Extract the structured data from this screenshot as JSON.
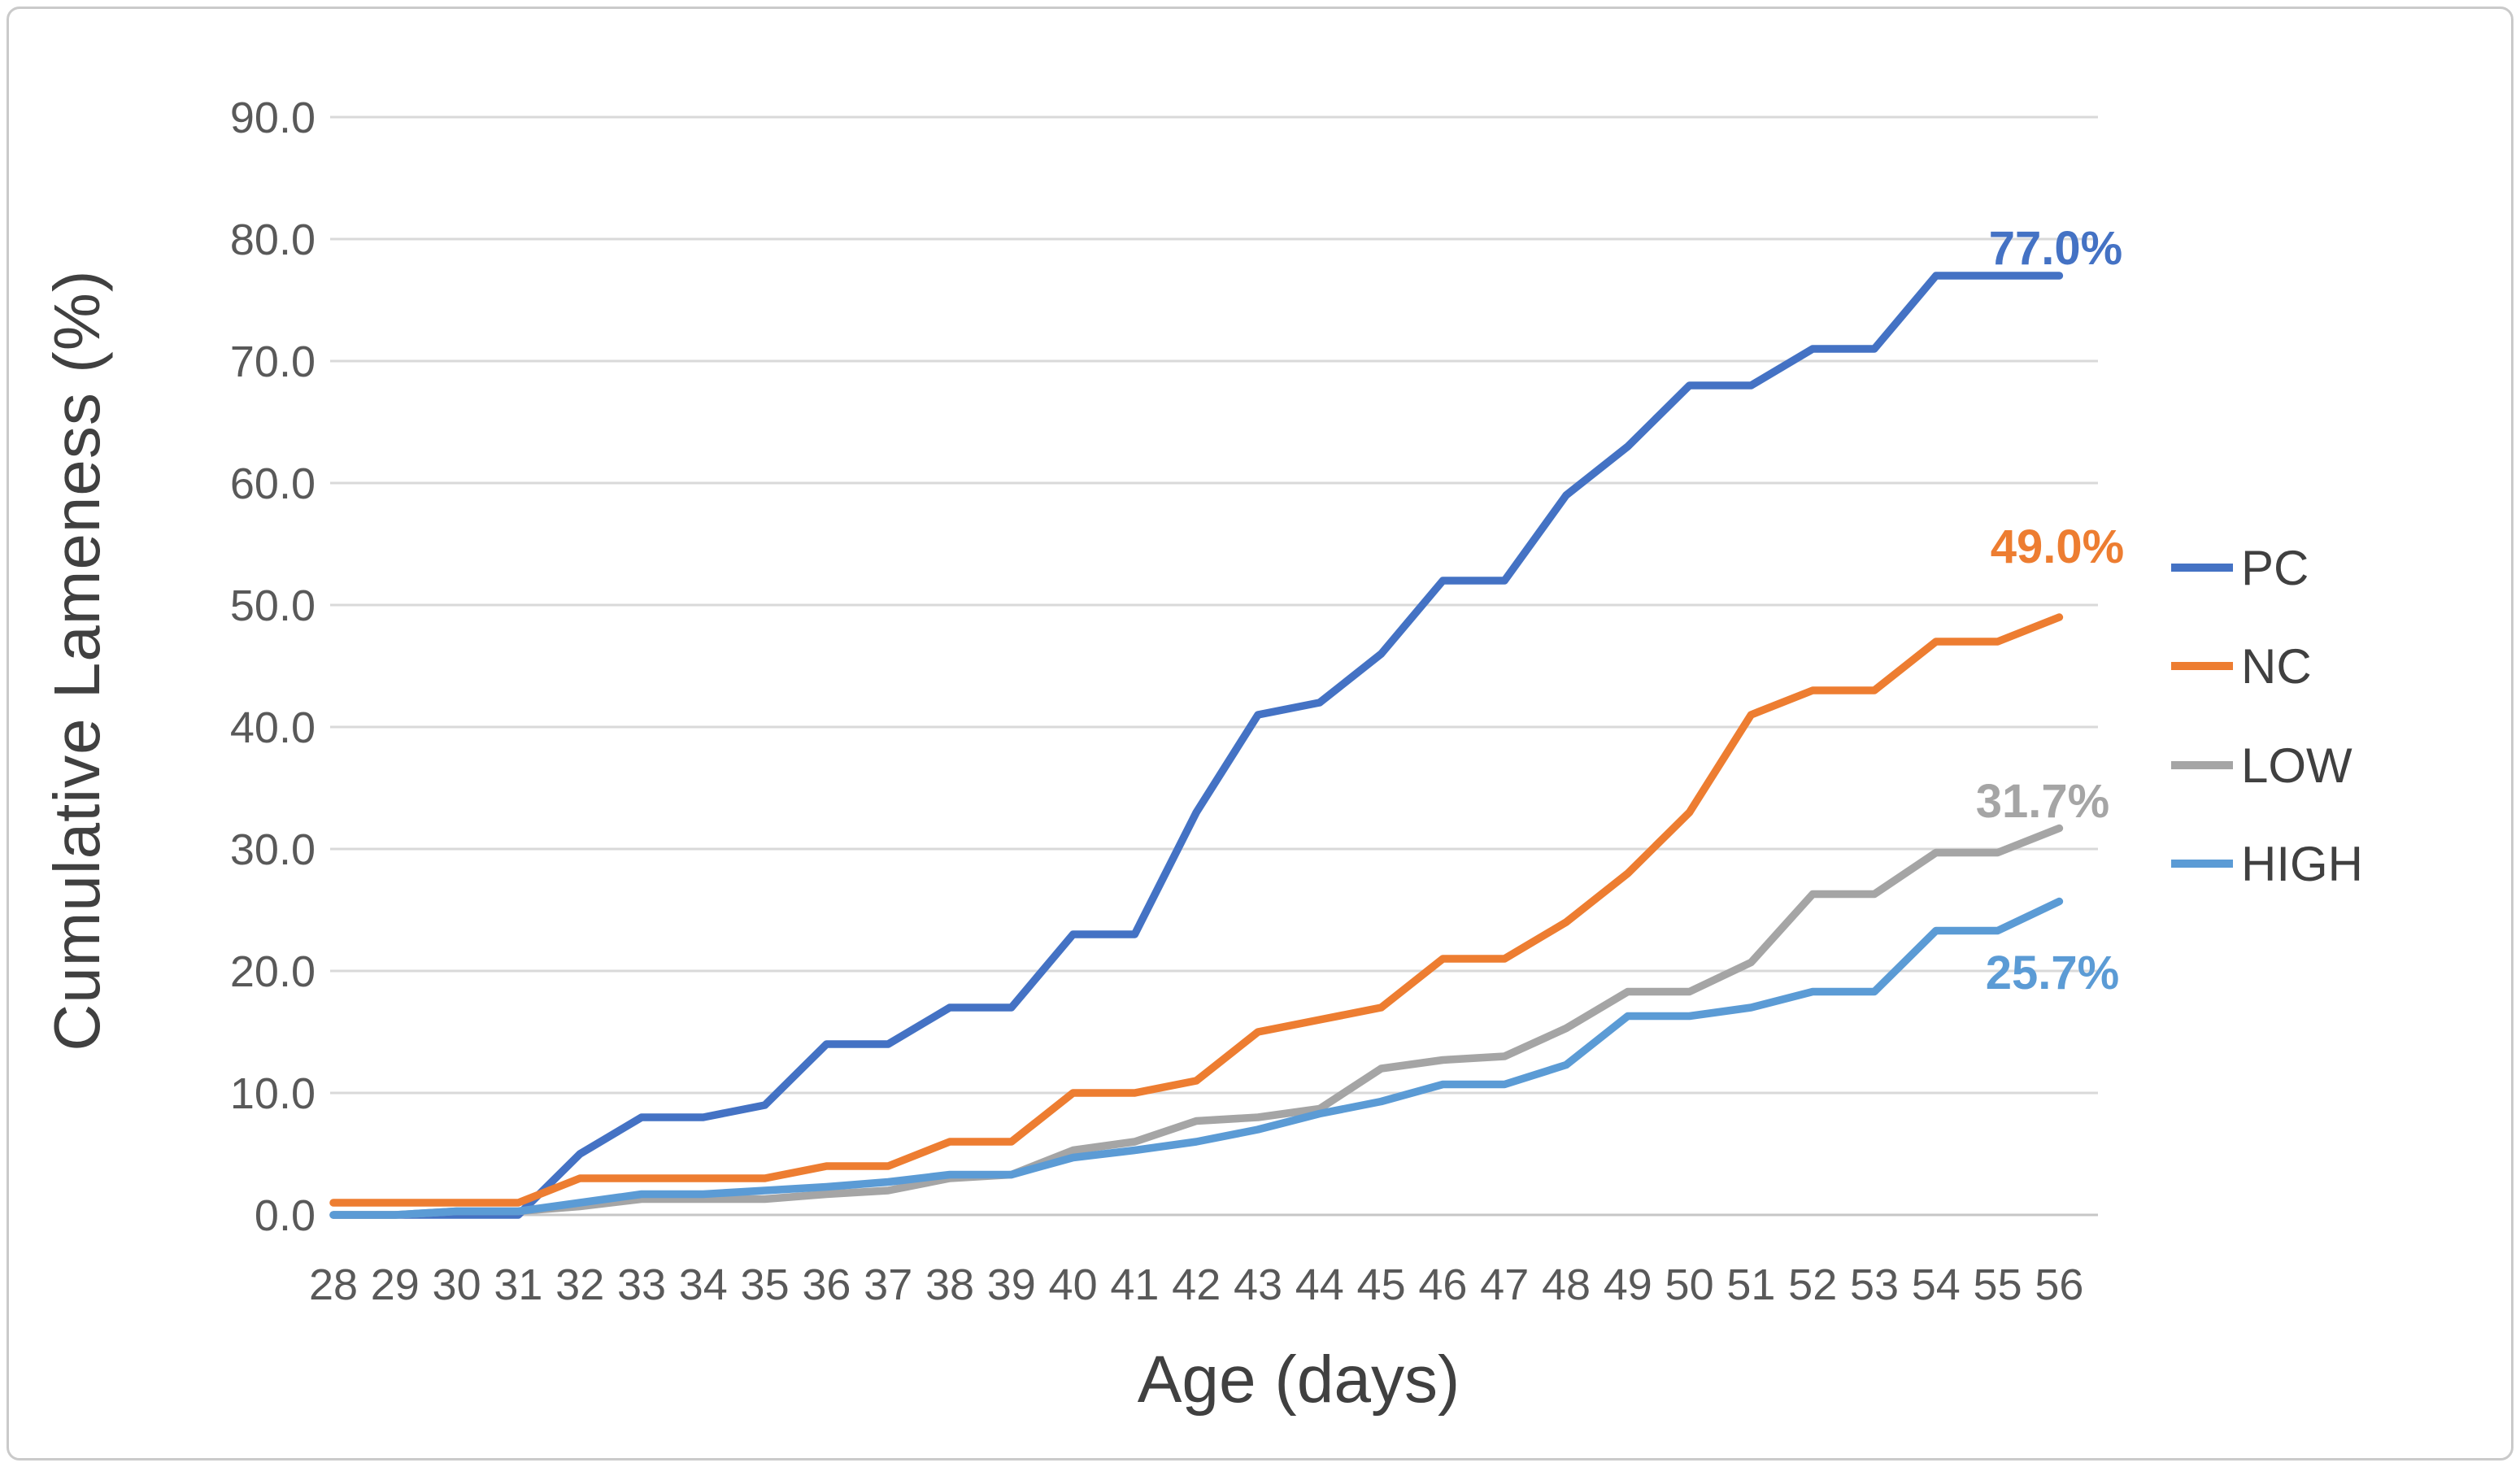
{
  "figure": {
    "background": "#ffffff",
    "border_color": "#cacaca"
  },
  "chart_data": {
    "type": "line",
    "title": "",
    "xlabel": "Age (days)",
    "ylabel": "Cumulative Lameness (%)",
    "x": [
      28,
      29,
      30,
      31,
      32,
      33,
      34,
      35,
      36,
      37,
      38,
      39,
      40,
      41,
      42,
      43,
      44,
      45,
      46,
      47,
      48,
      49,
      50,
      51,
      52,
      53,
      54,
      55,
      56
    ],
    "ylim": [
      0,
      90
    ],
    "yticks": [
      0,
      10,
      20,
      30,
      40,
      50,
      60,
      70,
      80,
      90
    ],
    "ytick_labels": [
      "0.0",
      "10.0",
      "20.0",
      "30.0",
      "40.0",
      "50.0",
      "60.0",
      "70.0",
      "80.0",
      "90.0"
    ],
    "grid": true,
    "gridline_color": "#d9d9d9",
    "axis_text_color": "#595959",
    "legend_position": "right",
    "series": [
      {
        "name": "PC",
        "color": "#4472C4",
        "end_label": "77.0%",
        "values": [
          0,
          0,
          0,
          0,
          5,
          8,
          8,
          9,
          14,
          14,
          17,
          17,
          23,
          23,
          33,
          41,
          42,
          46,
          52,
          52,
          59,
          63,
          68,
          68,
          71,
          71,
          77,
          77,
          77
        ]
      },
      {
        "name": "NC",
        "color": "#ED7D31",
        "end_label": "49.0%",
        "values": [
          1,
          1,
          1,
          1,
          3,
          3,
          3,
          3,
          4,
          4,
          6,
          6,
          10,
          10,
          11,
          15,
          16,
          17,
          21,
          21,
          24,
          28,
          33,
          41,
          43,
          43,
          47,
          47,
          49
        ]
      },
      {
        "name": "LOW",
        "color": "#A5A5A5",
        "end_label": "31.7%",
        "values": [
          0,
          0,
          0.3,
          0.3,
          0.7,
          1.3,
          1.3,
          1.3,
          1.7,
          2,
          3,
          3.3,
          5.3,
          6,
          7.7,
          8,
          8.7,
          12,
          12.7,
          13,
          15.3,
          18.3,
          18.3,
          20.7,
          26.3,
          26.3,
          29.7,
          29.7,
          31.7
        ]
      },
      {
        "name": "HIGH",
        "color": "#5B9BD5",
        "end_label": "25.7%",
        "values": [
          0,
          0,
          0.3,
          0.3,
          1,
          1.7,
          1.7,
          2,
          2.3,
          2.7,
          3.3,
          3.3,
          4.7,
          5.3,
          6,
          7,
          8.3,
          9.3,
          10.7,
          10.7,
          12.3,
          16.3,
          16.3,
          17,
          18.3,
          18.3,
          23.3,
          23.3,
          25.7
        ]
      }
    ]
  }
}
